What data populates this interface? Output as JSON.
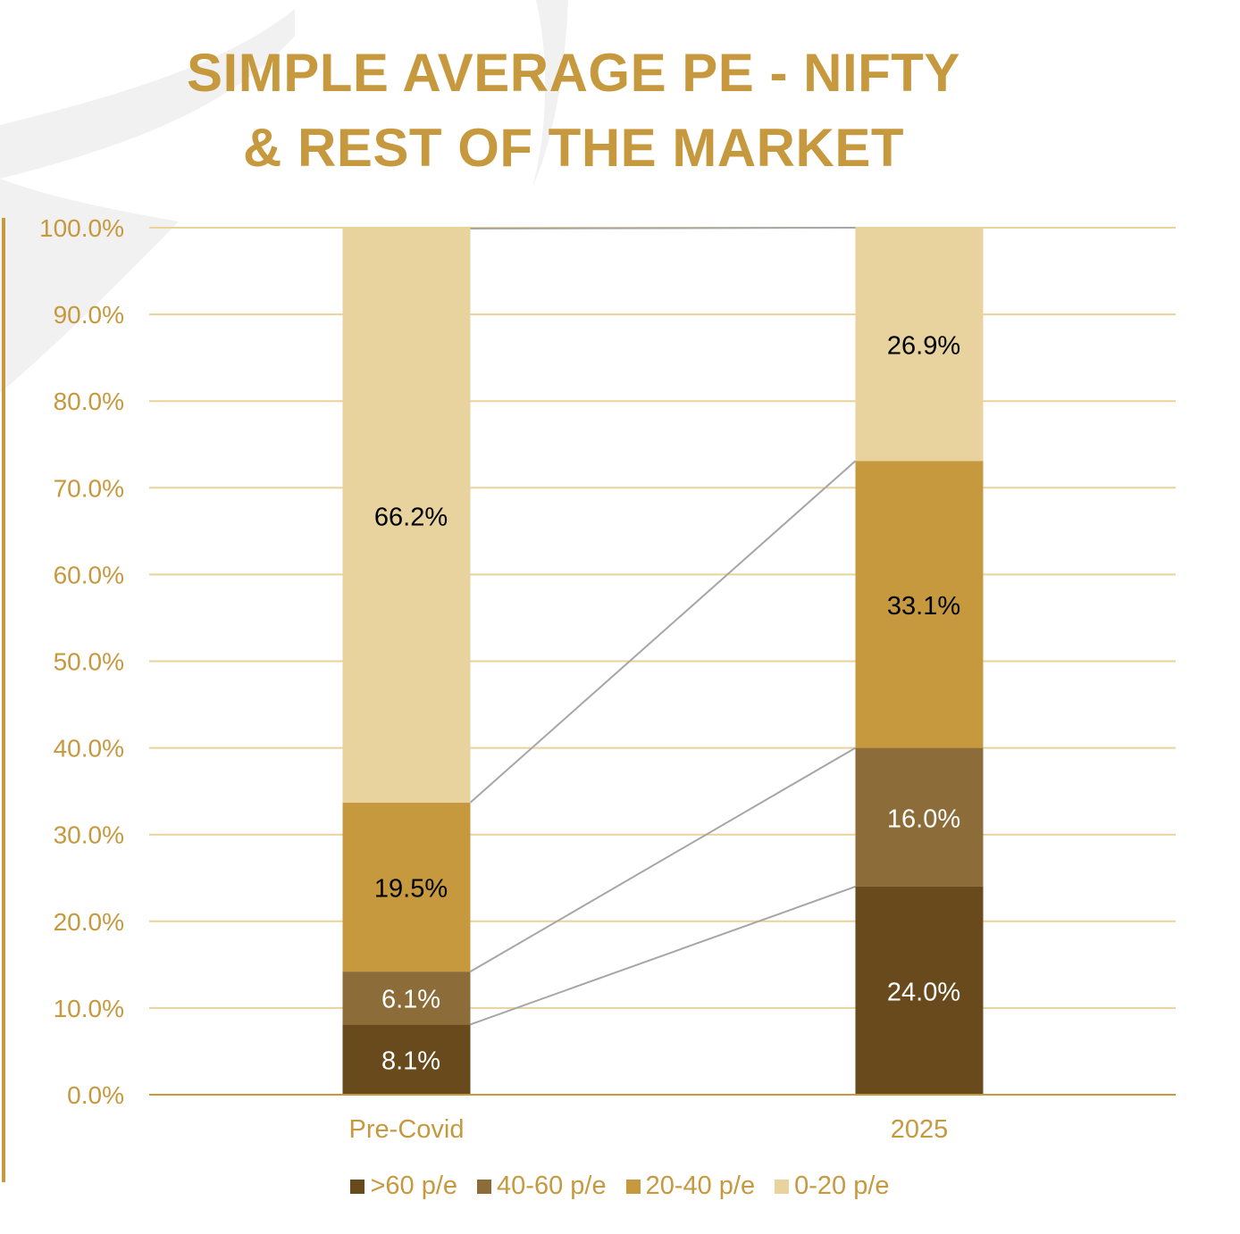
{
  "title": {
    "line1": "SIMPLE AVERAGE PE - NIFTY",
    "line2": "& REST OF THE MARKET"
  },
  "colors": {
    "title": "#c7993f",
    "axis_text": "#c7993f",
    "gridline": "#e8d39b",
    "connector": "#a6a6a6"
  },
  "chart_data": {
    "type": "bar",
    "stacked": true,
    "categories": [
      "Pre-Covid",
      "2025"
    ],
    "series": [
      {
        "name": ">60 p/e",
        "color": "#684a1c",
        "label_color": "#ffffff",
        "values": [
          8.1,
          24.0
        ]
      },
      {
        "name": "40-60 p/e",
        "color": "#8c6d3a",
        "label_color": "#ffffff",
        "values": [
          6.1,
          16.0
        ]
      },
      {
        "name": "20-40 p/e",
        "color": "#c7993f",
        "label_color": "#000000",
        "values": [
          19.5,
          33.1
        ]
      },
      {
        "name": "0-20 p/e",
        "color": "#e8d29e",
        "label_color": "#000000",
        "values": [
          66.2,
          26.9
        ]
      }
    ],
    "data_labels": [
      [
        "8.1%",
        "24.0%"
      ],
      [
        "6.1%",
        "16.0%"
      ],
      [
        "19.5%",
        "33.1%"
      ],
      [
        "66.2%",
        "26.9%"
      ]
    ],
    "ylim": [
      0,
      100
    ],
    "yticks": [
      0,
      10,
      20,
      30,
      40,
      50,
      60,
      70,
      80,
      90,
      100
    ],
    "ytick_labels": [
      "0.0%",
      "10.0%",
      "20.0%",
      "30.0%",
      "40.0%",
      "50.0%",
      "60.0%",
      "70.0%",
      "80.0%",
      "90.0%",
      "100.0%"
    ],
    "xlabel": "",
    "ylabel": "",
    "grid": true,
    "series_lines": true,
    "legend_position": "bottom"
  }
}
